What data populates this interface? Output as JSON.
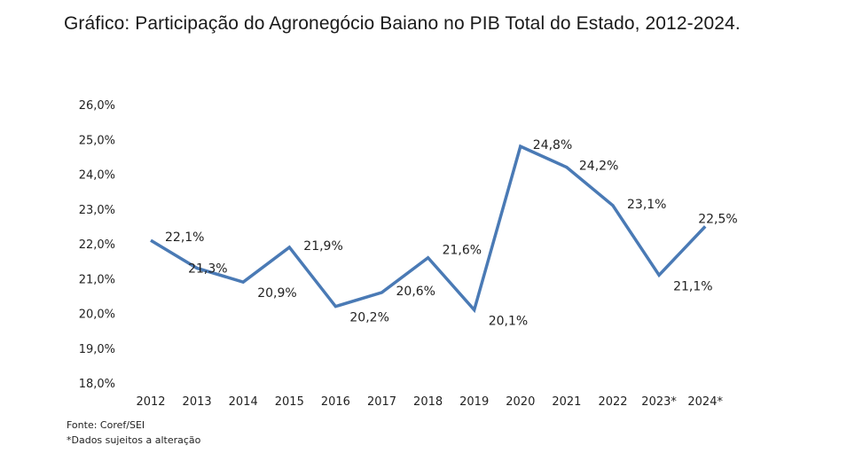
{
  "title": "Gráfico: Participação do Agronegócio Baiano no PIB Total do Estado, 2012-2024.",
  "chart_data": {
    "type": "line",
    "categories": [
      "2012",
      "2013",
      "2014",
      "2015",
      "2016",
      "2017",
      "2018",
      "2019",
      "2020",
      "2021",
      "2022",
      "2023*",
      "2024*"
    ],
    "values": [
      22.1,
      21.3,
      20.9,
      21.9,
      20.2,
      20.6,
      21.6,
      20.1,
      24.8,
      24.2,
      23.1,
      21.1,
      22.5
    ],
    "data_labels": [
      "22,1%",
      "21,3%",
      "20,9%",
      "21,9%",
      "20,2%",
      "20,6%",
      "21,6%",
      "20,1%",
      "24,8%",
      "24,2%",
      "23,1%",
      "21,1%",
      "22,5%"
    ],
    "y_ticks": [
      "18,0%",
      "19,0%",
      "20,0%",
      "21,0%",
      "22,0%",
      "23,0%",
      "24,0%",
      "25,0%",
      "26,0%"
    ],
    "ylim": [
      18,
      26
    ],
    "grid": false,
    "line_color": "#4a7ab5"
  },
  "footer": {
    "source": "Fonte: Coref/SEI",
    "note": "*Dados sujeitos a alteração"
  }
}
